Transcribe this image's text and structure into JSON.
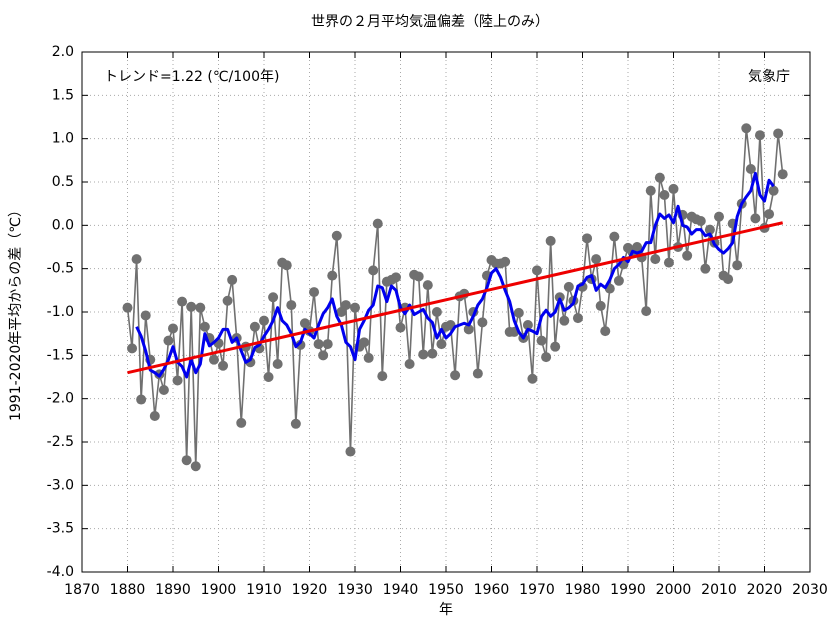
{
  "chart_data": {
    "type": "line",
    "title": "世界の２月平均気温偏差（陸上のみ）",
    "xlabel": "年",
    "ylabel": "1991-2020年平均からの差（℃）",
    "annotations": [
      "トレンド=1.22 (℃/100年)",
      "気象庁"
    ],
    "xlim": [
      1870,
      2030
    ],
    "ylim": [
      -4.0,
      2.0
    ],
    "xticks": [
      1870,
      1880,
      1890,
      1900,
      1910,
      1920,
      1930,
      1940,
      1950,
      1960,
      1970,
      1980,
      1990,
      2000,
      2010,
      2020,
      2030
    ],
    "yticks": [
      {
        "value": 2.0,
        "label": "2.0"
      },
      1.5,
      {
        "value": 1.0,
        "label": "1.0"
      },
      0.5,
      {
        "value": 0.0,
        "label": "0.0"
      },
      -0.5,
      {
        "value": -1.0,
        "label": "-1.0"
      },
      -1.5,
      {
        "value": -2.0,
        "label": "-2.0"
      },
      -2.5,
      {
        "value": -3.0,
        "label": "-3.0"
      },
      -3.5,
      {
        "value": -4.0,
        "label": "-4.0"
      }
    ],
    "grid": true,
    "x": [
      1880,
      1881,
      1882,
      1883,
      1884,
      1885,
      1886,
      1887,
      1888,
      1889,
      1890,
      1891,
      1892,
      1893,
      1894,
      1895,
      1896,
      1897,
      1898,
      1899,
      1900,
      1901,
      1902,
      1903,
      1904,
      1905,
      1906,
      1907,
      1908,
      1909,
      1910,
      1911,
      1912,
      1913,
      1914,
      1915,
      1916,
      1917,
      1918,
      1919,
      1920,
      1921,
      1922,
      1923,
      1924,
      1925,
      1926,
      1927,
      1928,
      1929,
      1930,
      1931,
      1932,
      1933,
      1934,
      1935,
      1936,
      1937,
      1938,
      1939,
      1940,
      1941,
      1942,
      1943,
      1944,
      1945,
      1946,
      1947,
      1948,
      1949,
      1950,
      1951,
      1952,
      1953,
      1954,
      1955,
      1956,
      1957,
      1958,
      1959,
      1960,
      1961,
      1962,
      1963,
      1964,
      1965,
      1966,
      1967,
      1968,
      1969,
      1970,
      1971,
      1972,
      1973,
      1974,
      1975,
      1976,
      1977,
      1978,
      1979,
      1980,
      1981,
      1982,
      1983,
      1984,
      1985,
      1986,
      1987,
      1988,
      1989,
      1990,
      1991,
      1992,
      1993,
      1994,
      1995,
      1996,
      1997,
      1998,
      1999,
      2000,
      2001,
      2002,
      2003,
      2004,
      2005,
      2006,
      2007,
      2008,
      2009,
      2010,
      2011,
      2012,
      2013,
      2014,
      2015,
      2016,
      2017,
      2018,
      2019,
      2020,
      2021,
      2022,
      2023,
      2024
    ],
    "series": [
      {
        "color": "#707070",
        "markers": true,
        "values": [
          -0.95,
          -1.42,
          -0.39,
          -2.01,
          -1.04,
          -1.55,
          -2.2,
          -1.72,
          -1.9,
          -1.33,
          -1.19,
          -1.79,
          -0.88,
          -2.71,
          -0.94,
          -2.78,
          -0.95,
          -1.17,
          -1.3,
          -1.55,
          -1.36,
          -1.62,
          -0.87,
          -0.63,
          -1.3,
          -2.28,
          -1.4,
          -1.58,
          -1.17,
          -1.42,
          -1.1,
          -1.75,
          -0.83,
          -1.6,
          -0.43,
          -0.46,
          -0.92,
          -2.29,
          -1.38,
          -1.13,
          -1.22,
          -0.77,
          -1.37,
          -1.5,
          -1.37,
          -0.58,
          -0.12,
          -1.0,
          -0.92,
          -2.61,
          -0.95,
          -1.4,
          -1.35,
          -1.53,
          -0.52,
          0.02,
          -1.74,
          -0.65,
          -0.63,
          -0.6,
          -1.18,
          -0.95,
          -1.6,
          -0.57,
          -0.59,
          -1.49,
          -0.69,
          -1.48,
          -1.0,
          -1.37,
          -1.17,
          -1.15,
          -1.73,
          -0.82,
          -0.79,
          -1.2,
          -1.0,
          -1.71,
          -1.12,
          -0.58,
          -0.4,
          -0.44,
          -0.44,
          -0.42,
          -1.23,
          -1.23,
          -1.01,
          -1.3,
          -1.15,
          -1.77,
          -0.52,
          -1.33,
          -1.52,
          -0.18,
          -1.4,
          -0.83,
          -1.1,
          -0.71,
          -0.87,
          -1.07,
          -0.71,
          -0.15,
          -0.62,
          -0.39,
          -0.93,
          -1.22,
          -0.73,
          -0.13,
          -0.64,
          -0.45,
          -0.26,
          -0.31,
          -0.25,
          -0.37,
          -0.99,
          0.4,
          -0.39,
          0.55,
          0.35,
          -0.43,
          0.42,
          -0.25,
          0.12,
          -0.35,
          0.1,
          0.07,
          0.05,
          -0.5,
          -0.05,
          -0.2,
          0.1,
          -0.58,
          -0.62,
          0.02,
          -0.46,
          0.25,
          1.12,
          0.65,
          0.08,
          1.04,
          -0.03,
          0.13,
          0.4,
          1.06,
          0.59
        ]
      },
      {
        "color": "#0000ee",
        "markers": false,
        "values": [
          null,
          null,
          -1.17,
          -1.28,
          -1.45,
          -1.67,
          -1.7,
          -1.74,
          -1.66,
          -1.55,
          -1.4,
          -1.58,
          -1.63,
          -1.75,
          -1.55,
          -1.7,
          -1.6,
          -1.25,
          -1.39,
          -1.35,
          -1.3,
          -1.2,
          -1.2,
          -1.35,
          -1.3,
          -1.45,
          -1.58,
          -1.55,
          -1.41,
          -1.38,
          -1.28,
          -1.2,
          -1.1,
          -0.95,
          -1.1,
          -1.15,
          -1.25,
          -1.4,
          -1.35,
          -1.2,
          -1.25,
          -1.3,
          -1.15,
          -1.02,
          -0.95,
          -0.85,
          -1.05,
          -1.15,
          -1.35,
          -1.4,
          -1.55,
          -1.2,
          -1.1,
          -0.98,
          -0.92,
          -0.7,
          -0.72,
          -0.88,
          -0.7,
          -0.75,
          -0.95,
          -1.02,
          -0.92,
          -1.03,
          -1.0,
          -0.97,
          -1.07,
          -1.12,
          -1.3,
          -1.2,
          -1.3,
          -1.25,
          -1.17,
          -1.15,
          -1.13,
          -1.15,
          -1.05,
          -0.92,
          -0.85,
          -0.72,
          -0.55,
          -0.5,
          -0.6,
          -0.75,
          -0.88,
          -1.1,
          -1.23,
          -1.3,
          -1.2,
          -1.22,
          -1.25,
          -1.05,
          -0.98,
          -1.05,
          -1.0,
          -0.85,
          -0.98,
          -0.95,
          -0.9,
          -0.7,
          -0.68,
          -0.6,
          -0.58,
          -0.75,
          -0.68,
          -0.72,
          -0.63,
          -0.5,
          -0.45,
          -0.37,
          -0.42,
          -0.3,
          -0.32,
          -0.3,
          -0.2,
          -0.2,
          0.0,
          0.13,
          0.08,
          0.12,
          0.03,
          0.22,
          0.0,
          -0.02,
          -0.1,
          -0.05,
          -0.05,
          -0.12,
          -0.1,
          -0.22,
          -0.28,
          -0.32,
          -0.27,
          -0.2,
          0.1,
          0.25,
          0.33,
          0.4,
          0.6,
          0.35,
          0.28,
          0.52,
          0.45,
          null,
          null
        ]
      },
      {
        "color": "#ee0000",
        "markers": false,
        "x": [
          1880,
          2024
        ],
        "values": [
          -1.7,
          0.03
        ]
      }
    ]
  }
}
